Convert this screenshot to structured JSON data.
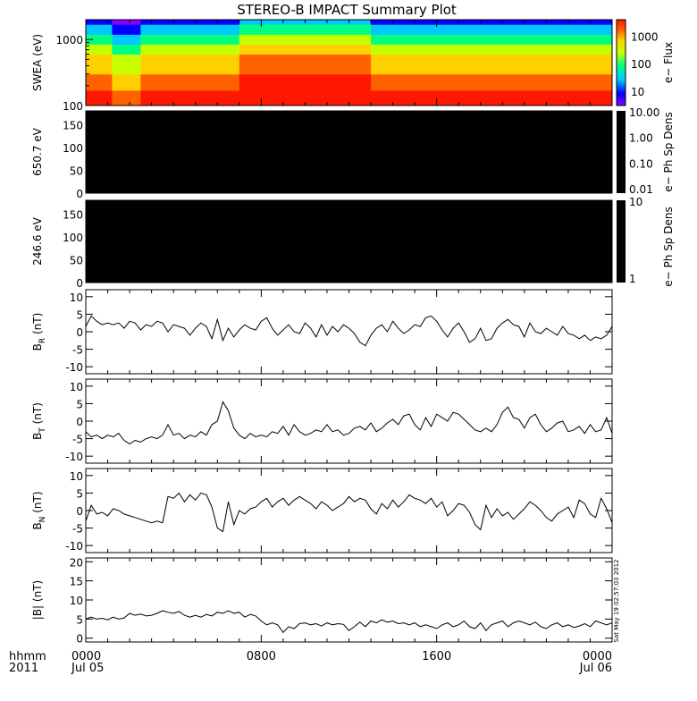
{
  "title": "STEREO-B IMPACT Summary Plot",
  "timestamp_text": "Sat May 19 02:57:03 2012",
  "x_axis": {
    "label_line1": "hhmm",
    "label_line2": "2011",
    "ticks": [
      {
        "hour": 0,
        "top": "0000",
        "bottom": "Jul 05"
      },
      {
        "hour": 8,
        "top": "0800",
        "bottom": ""
      },
      {
        "hour": 16,
        "top": "1600",
        "bottom": ""
      },
      {
        "hour": 24,
        "top": "0000",
        "bottom": "Jul 06"
      }
    ],
    "range_hours": [
      0,
      24
    ]
  },
  "chart_data": [
    {
      "type": "heatmap",
      "panel": "swea",
      "ylabel": "SWEA (eV)",
      "yscale": "log",
      "ylim": [
        100,
        2000
      ],
      "yticks": [
        100,
        1000
      ],
      "ytick_labels": [
        "100",
        "1000"
      ],
      "colorbar": {
        "label": "e− Flux",
        "scale": "log",
        "ticks": [
          "10",
          "100",
          "1000"
        ],
        "range": [
          3,
          4000
        ]
      },
      "colormap": [
        "#8a00ff",
        "#0000ff",
        "#00c8ff",
        "#00ff80",
        "#c8ff00",
        "#ffd000",
        "#ff6000",
        "#ff1800"
      ],
      "energy_bands_eV": [
        100,
        130,
        170,
        230,
        300,
        420,
        600,
        850,
        1200,
        1700,
        2000
      ],
      "time_segments": [
        {
          "start": 0.0,
          "end": 1.2,
          "shift": 0
        },
        {
          "start": 1.2,
          "end": 2.5,
          "shift": -1
        },
        {
          "start": 2.5,
          "end": 7.0,
          "shift": 0
        },
        {
          "start": 7.0,
          "end": 13.0,
          "shift": 1
        },
        {
          "start": 13.0,
          "end": 17.5,
          "shift": 0
        },
        {
          "start": 17.5,
          "end": 24.0,
          "shift": 0
        }
      ]
    },
    {
      "type": "heatmap",
      "panel": "pad650",
      "ylabel": "650.7 eV",
      "ylim": [
        0,
        180
      ],
      "yticks": [
        0,
        50,
        100,
        150
      ],
      "values_note": "",
      "fill": "#000000",
      "colorbar": {
        "label": "e− Ph Sp Dens",
        "scale": "log",
        "ticks": [
          "10.00",
          "1.00",
          "0.10",
          "0.01"
        ]
      }
    },
    {
      "type": "heatmap",
      "panel": "pad246",
      "ylabel": "246.6 eV",
      "ylim": [
        0,
        180
      ],
      "yticks": [
        0,
        50,
        100,
        150
      ],
      "fill": "#000000",
      "colorbar": {
        "label": "e− Ph Sp Dens",
        "scale": "log",
        "ticks": [
          "10",
          "1"
        ]
      }
    },
    {
      "type": "line",
      "panel": "br",
      "ylabel_main": "B",
      "ylabel_sub": "R",
      "ylabel_unit": " (nT)",
      "ylim": [
        -12,
        12
      ],
      "yticks": [
        -10,
        -5,
        0,
        5,
        10
      ],
      "x": [
        0,
        0.25,
        0.5,
        0.75,
        1,
        1.25,
        1.5,
        1.75,
        2,
        2.25,
        2.5,
        2.75,
        3,
        3.25,
        3.5,
        3.75,
        4,
        4.25,
        4.5,
        4.75,
        5,
        5.25,
        5.5,
        5.75,
        6,
        6.25,
        6.5,
        6.75,
        7,
        7.25,
        7.5,
        7.75,
        8,
        8.25,
        8.5,
        8.75,
        9,
        9.25,
        9.5,
        9.75,
        10,
        10.25,
        10.5,
        10.75,
        11,
        11.25,
        11.5,
        11.75,
        12,
        12.25,
        12.5,
        12.75,
        13,
        13.25,
        13.5,
        13.75,
        14,
        14.25,
        14.5,
        14.75,
        15,
        15.25,
        15.5,
        15.75,
        16,
        16.25,
        16.5,
        16.75,
        17,
        17.25,
        17.5,
        17.75,
        18,
        18.25,
        18.5,
        18.75,
        19,
        19.25,
        19.5,
        19.75,
        20,
        20.25,
        20.5,
        20.75,
        21,
        21.25,
        21.5,
        21.75,
        22,
        22.25,
        22.5,
        22.75,
        23,
        23.25,
        23.5,
        23.75,
        24
      ],
      "values": [
        1.5,
        4.5,
        3.0,
        2.0,
        2.5,
        2.0,
        2.5,
        1.0,
        3.0,
        2.5,
        0.5,
        2.0,
        1.5,
        3.0,
        2.5,
        0.0,
        2.0,
        1.5,
        1.0,
        -1.0,
        1.0,
        2.5,
        1.5,
        -2.0,
        3.5,
        -2.5,
        1.0,
        -1.5,
        0.5,
        2.0,
        1.0,
        0.5,
        3.0,
        4.0,
        1.0,
        -1.0,
        0.5,
        2.0,
        0.0,
        -0.5,
        2.5,
        1.0,
        -1.5,
        2.0,
        -1.0,
        1.5,
        0.0,
        2.0,
        1.0,
        -0.5,
        -3.0,
        -4.0,
        -1.0,
        1.0,
        2.0,
        0.0,
        3.0,
        1.0,
        -0.5,
        0.5,
        2.0,
        1.5,
        4.0,
        4.5,
        3.0,
        0.5,
        -1.5,
        1.0,
        2.5,
        0.0,
        -3.0,
        -2.0,
        1.0,
        -2.5,
        -2.0,
        1.0,
        2.5,
        3.5,
        2.0,
        1.5,
        -1.5,
        2.5,
        0.0,
        -0.5,
        1.0,
        0.0,
        -1.0,
        1.5,
        -0.5,
        -1.0,
        -2.0,
        -1.0,
        -2.5,
        -1.5,
        -2.0,
        -1.0,
        1.5
      ]
    },
    {
      "type": "line",
      "panel": "bt",
      "ylabel_main": "B",
      "ylabel_sub": "T",
      "ylabel_unit": " (nT)",
      "ylim": [
        -12,
        12
      ],
      "yticks": [
        -10,
        -5,
        0,
        5,
        10
      ],
      "x": [
        0,
        0.25,
        0.5,
        0.75,
        1,
        1.25,
        1.5,
        1.75,
        2,
        2.25,
        2.5,
        2.75,
        3,
        3.25,
        3.5,
        3.75,
        4,
        4.25,
        4.5,
        4.75,
        5,
        5.25,
        5.5,
        5.75,
        6,
        6.25,
        6.5,
        6.75,
        7,
        7.25,
        7.5,
        7.75,
        8,
        8.25,
        8.5,
        8.75,
        9,
        9.25,
        9.5,
        9.75,
        10,
        10.25,
        10.5,
        10.75,
        11,
        11.25,
        11.5,
        11.75,
        12,
        12.25,
        12.5,
        12.75,
        13,
        13.25,
        13.5,
        13.75,
        14,
        14.25,
        14.5,
        14.75,
        15,
        15.25,
        15.5,
        15.75,
        16,
        16.25,
        16.5,
        16.75,
        17,
        17.25,
        17.5,
        17.75,
        18,
        18.25,
        18.5,
        18.75,
        19,
        19.25,
        19.5,
        19.75,
        20,
        20.25,
        20.5,
        20.75,
        21,
        21.25,
        21.5,
        21.75,
        22,
        22.25,
        22.5,
        22.75,
        23,
        23.25,
        23.5,
        23.75,
        24
      ],
      "values": [
        -3.0,
        -4.5,
        -4.0,
        -5.0,
        -4.0,
        -4.5,
        -3.5,
        -5.5,
        -6.5,
        -5.5,
        -6.0,
        -5.0,
        -4.5,
        -5.0,
        -4.0,
        -1.0,
        -4.0,
        -3.5,
        -5.0,
        -4.0,
        -4.5,
        -3.0,
        -4.0,
        -1.0,
        0.0,
        5.5,
        3.0,
        -2.0,
        -4.0,
        -5.0,
        -3.5,
        -4.5,
        -4.0,
        -4.5,
        -3.0,
        -3.5,
        -1.5,
        -4.0,
        -1.0,
        -3.0,
        -4.0,
        -3.5,
        -2.5,
        -3.0,
        -1.0,
        -3.0,
        -2.5,
        -4.0,
        -3.5,
        -2.0,
        -1.5,
        -2.5,
        -0.5,
        -3.0,
        -2.0,
        -0.5,
        0.5,
        -1.0,
        1.5,
        2.0,
        -1.0,
        -2.5,
        1.0,
        -1.5,
        2.0,
        1.0,
        0.0,
        2.5,
        2.0,
        0.5,
        -1.0,
        -2.5,
        -3.0,
        -2.0,
        -3.0,
        -1.0,
        2.5,
        4.0,
        1.0,
        0.5,
        -2.0,
        1.0,
        2.0,
        -1.0,
        -3.0,
        -2.0,
        -0.5,
        0.0,
        -3.0,
        -2.5,
        -1.5,
        -3.5,
        -1.0,
        -3.0,
        -2.5,
        1.0,
        -3.5
      ]
    },
    {
      "type": "line",
      "panel": "bn",
      "ylabel_main": "B",
      "ylabel_sub": "N",
      "ylabel_unit": " (nT)",
      "ylim": [
        -12,
        12
      ],
      "yticks": [
        -10,
        -5,
        0,
        5,
        10
      ],
      "x": [
        0,
        0.25,
        0.5,
        0.75,
        1,
        1.25,
        1.5,
        1.75,
        2,
        2.25,
        2.5,
        2.75,
        3,
        3.25,
        3.5,
        3.75,
        4,
        4.25,
        4.5,
        4.75,
        5,
        5.25,
        5.5,
        5.75,
        6,
        6.25,
        6.5,
        6.75,
        7,
        7.25,
        7.5,
        7.75,
        8,
        8.25,
        8.5,
        8.75,
        9,
        9.25,
        9.5,
        9.75,
        10,
        10.25,
        10.5,
        10.75,
        11,
        11.25,
        11.5,
        11.75,
        12,
        12.25,
        12.5,
        12.75,
        13,
        13.25,
        13.5,
        13.75,
        14,
        14.25,
        14.5,
        14.75,
        15,
        15.25,
        15.5,
        15.75,
        16,
        16.25,
        16.5,
        16.75,
        17,
        17.25,
        17.5,
        17.75,
        18,
        18.25,
        18.5,
        18.75,
        19,
        19.25,
        19.5,
        19.75,
        20,
        20.25,
        20.5,
        20.75,
        21,
        21.25,
        21.5,
        21.75,
        22,
        22.25,
        22.5,
        22.75,
        23,
        23.25,
        23.5,
        23.75,
        24
      ],
      "values": [
        -3.0,
        1.5,
        -1.0,
        -0.5,
        -1.5,
        0.5,
        0.0,
        -1.0,
        -1.5,
        -2.0,
        -2.5,
        -3.0,
        -3.5,
        -3.0,
        -3.5,
        4.0,
        3.5,
        5.0,
        2.5,
        4.5,
        3.0,
        5.0,
        4.5,
        1.0,
        -5.0,
        -6.0,
        2.5,
        -4.0,
        0.0,
        -1.0,
        0.5,
        1.0,
        2.5,
        3.5,
        1.0,
        2.5,
        3.5,
        1.5,
        3.0,
        4.0,
        3.0,
        2.0,
        0.5,
        2.5,
        1.5,
        0.0,
        1.0,
        2.0,
        4.0,
        2.5,
        3.5,
        3.0,
        0.5,
        -1.0,
        2.0,
        0.5,
        3.0,
        1.0,
        2.5,
        4.5,
        3.5,
        3.0,
        2.0,
        3.5,
        1.0,
        2.5,
        -1.5,
        0.0,
        2.0,
        1.5,
        -0.5,
        -4.0,
        -5.5,
        1.5,
        -2.0,
        0.5,
        -1.5,
        -0.5,
        -2.5,
        -1.0,
        0.5,
        2.5,
        1.5,
        0.0,
        -2.0,
        -3.0,
        -1.0,
        0.0,
        1.0,
        -2.0,
        3.0,
        2.0,
        -1.0,
        -2.0,
        3.5,
        0.5,
        -3.5
      ]
    },
    {
      "type": "line",
      "panel": "bmag",
      "ylabel_main": "|B| (nT)",
      "ylim": [
        -1,
        21
      ],
      "yticks": [
        0,
        5,
        10,
        15,
        20
      ],
      "x": [
        0,
        0.25,
        0.5,
        0.75,
        1,
        1.25,
        1.5,
        1.75,
        2,
        2.25,
        2.5,
        2.75,
        3,
        3.25,
        3.5,
        3.75,
        4,
        4.25,
        4.5,
        4.75,
        5,
        5.25,
        5.5,
        5.75,
        6,
        6.25,
        6.5,
        6.75,
        7,
        7.25,
        7.5,
        7.75,
        8,
        8.25,
        8.5,
        8.75,
        9,
        9.25,
        9.5,
        9.75,
        10,
        10.25,
        10.5,
        10.75,
        11,
        11.25,
        11.5,
        11.75,
        12,
        12.25,
        12.5,
        12.75,
        13,
        13.25,
        13.5,
        13.75,
        14,
        14.25,
        14.5,
        14.75,
        15,
        15.25,
        15.5,
        15.75,
        16,
        16.25,
        16.5,
        16.75,
        17,
        17.25,
        17.5,
        17.75,
        18,
        18.25,
        18.5,
        18.75,
        19,
        19.25,
        19.5,
        19.75,
        20,
        20.25,
        20.5,
        20.75,
        21,
        21.25,
        21.5,
        21.75,
        22,
        22.25,
        22.5,
        22.75,
        23,
        23.25,
        23.5,
        23.75,
        24
      ],
      "values": [
        5.0,
        5.5,
        5.0,
        5.2,
        4.8,
        5.5,
        5.0,
        5.3,
        6.5,
        6.0,
        6.3,
        5.8,
        6.0,
        6.5,
        7.2,
        6.8,
        6.5,
        7.0,
        6.0,
        5.5,
        6.0,
        5.5,
        6.2,
        5.8,
        6.8,
        6.5,
        7.2,
        6.5,
        6.8,
        5.5,
        6.2,
        5.8,
        4.5,
        3.5,
        4.0,
        3.5,
        1.5,
        3.0,
        2.5,
        3.8,
        4.0,
        3.5,
        3.8,
        3.2,
        4.0,
        3.5,
        3.8,
        3.6,
        2.0,
        3.0,
        4.2,
        3.0,
        4.5,
        4.0,
        4.8,
        4.2,
        4.5,
        3.8,
        4.0,
        3.5,
        4.0,
        3.0,
        3.5,
        3.0,
        2.5,
        3.5,
        4.0,
        3.0,
        3.5,
        4.5,
        3.0,
        2.5,
        4.0,
        2.0,
        3.5,
        4.0,
        4.5,
        3.0,
        4.0,
        4.5,
        4.0,
        3.5,
        4.2,
        3.0,
        2.5,
        3.5,
        4.0,
        3.0,
        3.5,
        2.8,
        3.2,
        3.8,
        3.0,
        4.5,
        4.0,
        3.5,
        4.0
      ]
    }
  ]
}
